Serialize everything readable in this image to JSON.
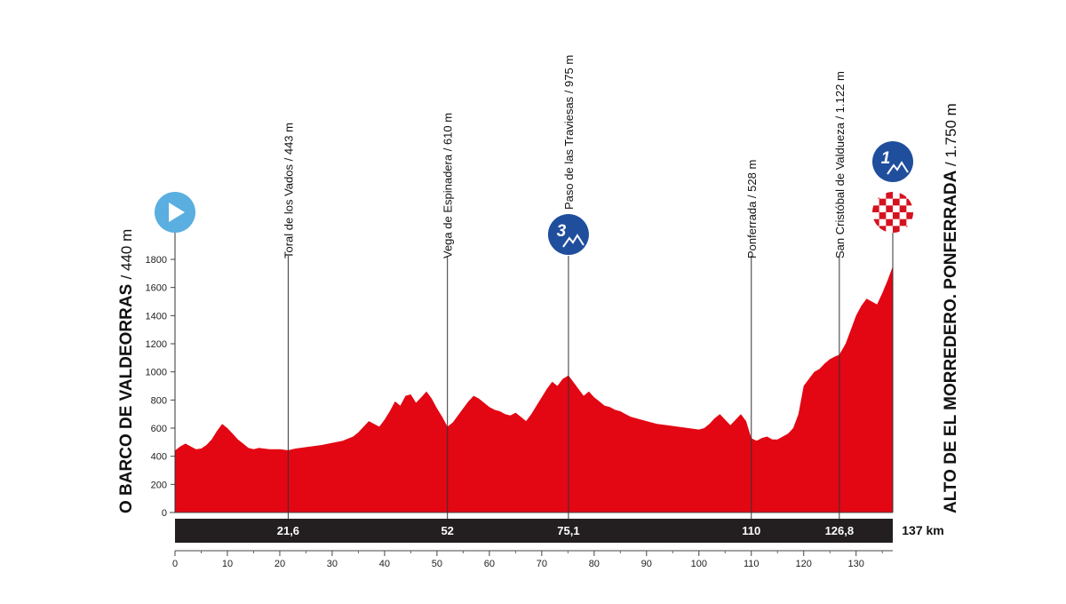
{
  "chart_data": {
    "type": "area",
    "title": "",
    "xlabel": "",
    "ylabel": "",
    "xlim": [
      0,
      137
    ],
    "ylim": [
      0,
      1800
    ],
    "y_ticks": [
      "0",
      "200",
      "400",
      "600",
      "800",
      "1000",
      "1200",
      "1400",
      "1600",
      "1800"
    ],
    "x_ticks": [
      "0",
      "10",
      "20",
      "30",
      "40",
      "50",
      "60",
      "70",
      "80",
      "90",
      "100",
      "110",
      "120",
      "130"
    ],
    "fill_color": "#e30613",
    "series": [
      {
        "x": [
          0,
          1,
          2,
          3,
          4,
          5,
          6,
          7,
          8,
          9,
          10,
          11,
          12,
          13,
          14,
          15,
          16,
          17,
          18,
          19,
          20,
          21.6,
          23,
          25,
          28,
          30,
          32,
          34,
          35,
          36,
          37,
          38,
          39,
          40,
          41,
          42,
          43,
          44,
          45,
          46,
          47,
          48,
          49,
          50,
          51,
          52,
          53,
          54,
          55,
          56,
          57,
          58,
          59,
          60,
          61,
          62,
          63,
          64,
          65,
          66,
          67,
          68,
          69,
          70,
          71,
          72,
          73,
          74,
          75.1,
          76,
          77,
          78,
          79,
          80,
          81,
          82,
          83,
          84,
          85,
          86,
          87,
          88,
          89,
          90,
          92,
          94,
          96,
          98,
          100,
          101,
          102,
          103,
          104,
          105,
          106,
          107,
          108,
          109,
          110,
          111,
          112,
          113,
          114,
          115,
          116,
          117,
          118,
          119,
          120,
          121,
          122,
          123,
          124,
          125,
          126,
          126.8,
          128,
          129,
          130,
          131,
          132,
          133,
          134,
          135,
          136,
          137
        ],
        "values": [
          440,
          470,
          490,
          470,
          450,
          455,
          480,
          520,
          580,
          630,
          600,
          560,
          520,
          490,
          460,
          450,
          460,
          455,
          450,
          450,
          450,
          443,
          455,
          465,
          480,
          495,
          510,
          540,
          570,
          610,
          650,
          630,
          610,
          660,
          720,
          790,
          760,
          830,
          840,
          780,
          820,
          860,
          810,
          740,
          680,
          610,
          640,
          690,
          740,
          790,
          830,
          810,
          780,
          750,
          730,
          720,
          700,
          690,
          710,
          680,
          650,
          700,
          760,
          820,
          880,
          930,
          900,
          950,
          975,
          930,
          880,
          830,
          860,
          820,
          790,
          760,
          750,
          730,
          720,
          700,
          680,
          670,
          660,
          650,
          630,
          620,
          610,
          600,
          590,
          600,
          630,
          670,
          700,
          660,
          620,
          660,
          700,
          650,
          528,
          510,
          530,
          540,
          520,
          520,
          540,
          560,
          600,
          700,
          900,
          950,
          1000,
          1020,
          1060,
          1090,
          1110,
          1122,
          1200,
          1300,
          1400,
          1470,
          1520,
          1500,
          1480,
          1560,
          1650,
          1750
        ]
      }
    ],
    "start": {
      "name": "O BARCO DE VALDEORRAS",
      "elevation": "/ 440 m"
    },
    "finish": {
      "name": "ALTO DE EL MORREDERO. PONFERRADA",
      "elevation": "/ 1.750 m"
    },
    "waypoints": [
      {
        "km": 21.6,
        "km_label": "21,6",
        "name": "Toral de los Vados",
        "elevation": "/ 443 m"
      },
      {
        "km": 52,
        "km_label": "52",
        "name": "Vega de Espinadera",
        "elevation": "/ 610 m"
      },
      {
        "km": 75.1,
        "km_label": "75,1",
        "name": "Paso de las Traviesas",
        "elevation": "/ 975 m",
        "climb_category": "3"
      },
      {
        "km": 110,
        "km_label": "110",
        "name": "Ponferrada",
        "elevation": "/ 528 m"
      },
      {
        "km": 126.8,
        "km_label": "126,8",
        "name": "San Cristóbal de Valdueza",
        "elevation": "/ 1.122 m"
      }
    ],
    "finish_climb_category": "1",
    "total_distance": "137 km",
    "colors": {
      "profile_fill": "#e30613",
      "distance_bar": "#231f20",
      "climb_badge": "#1f4e9c",
      "start_badge": "#5aaee0",
      "checker": "#d7121f"
    }
  }
}
